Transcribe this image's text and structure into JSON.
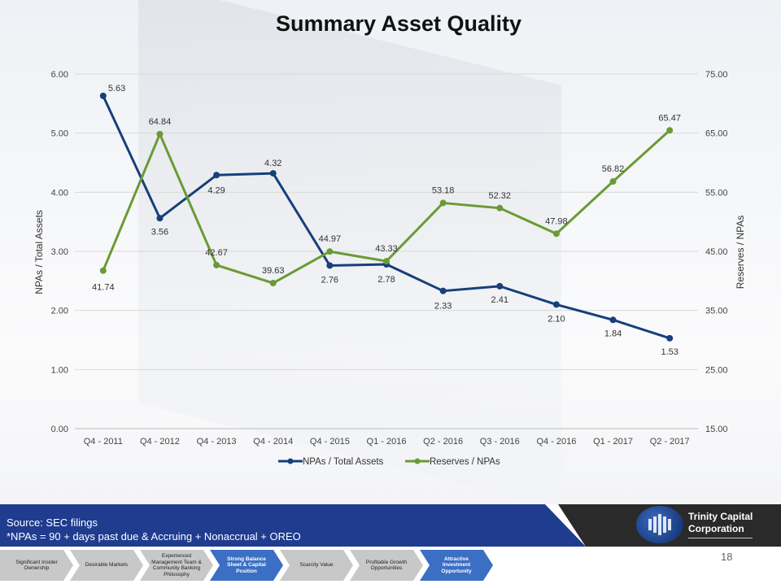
{
  "title": "Summary Asset Quality",
  "chart_data": {
    "type": "line",
    "categories": [
      "Q4 - 2011",
      "Q4 - 2012",
      "Q4 - 2013",
      "Q4 - 2014",
      "Q4 - 2015",
      "Q1 - 2016",
      "Q2 - 2016",
      "Q3 - 2016",
      "Q4 - 2016",
      "Q1 - 2017",
      "Q2 - 2017"
    ],
    "y_left": {
      "label": "NPAs / Total  Assets",
      "min": 0,
      "max": 6,
      "ticks": [
        "0.00",
        "1.00",
        "2.00",
        "3.00",
        "4.00",
        "5.00",
        "6.00"
      ]
    },
    "y_right": {
      "label": "Reserves  / NPAs",
      "min": 15,
      "max": 75,
      "ticks": [
        "15.00",
        "25.00",
        "35.00",
        "45.00",
        "55.00",
        "65.00",
        "75.00"
      ]
    },
    "series": [
      {
        "name": "NPAs / Total Assets",
        "axis": "left",
        "color": "#173f7b",
        "values": [
          5.63,
          3.56,
          4.29,
          4.32,
          2.76,
          2.78,
          2.33,
          2.41,
          2.1,
          1.84,
          1.53
        ],
        "labels": [
          "5.63",
          "3.56",
          "4.29",
          "4.32",
          "2.76",
          "2.78",
          "2.33",
          "2.41",
          "2.10",
          "1.84",
          "1.53"
        ]
      },
      {
        "name": "Reserves / NPAs",
        "axis": "right",
        "color": "#6b9a35",
        "values": [
          41.74,
          64.84,
          42.67,
          39.63,
          44.97,
          43.33,
          53.18,
          52.32,
          47.98,
          56.82,
          65.47
        ],
        "labels": [
          "41.74",
          "64.84",
          "42.67",
          "39.63",
          "44.97",
          "43.33",
          "53.18",
          "52.32",
          "47.98",
          "56.82",
          "65.47"
        ]
      }
    ],
    "grid": true,
    "legend_position": "bottom"
  },
  "footer": {
    "source": "Source: SEC filings",
    "note": "*NPAs = 90 + days past due &  Accruing + Nonaccrual  + OREO",
    "company_line1": "Trinity Capital",
    "company_line2": "Corporation",
    "page": "18"
  },
  "steps": [
    {
      "label": "Significant Insider Ownership",
      "highlight": false
    },
    {
      "label": "Desirable Markets",
      "highlight": false
    },
    {
      "label": "Experienced Management Team & Community Banking Philosophy",
      "highlight": false
    },
    {
      "label": "Strong Balance Sheet & Capital Position",
      "highlight": true
    },
    {
      "label": "Scarcity Value",
      "highlight": false
    },
    {
      "label": "Profitable Growth Opportunities",
      "highlight": false
    },
    {
      "label": "Attractive Investment Opportunity",
      "highlight": true
    }
  ]
}
